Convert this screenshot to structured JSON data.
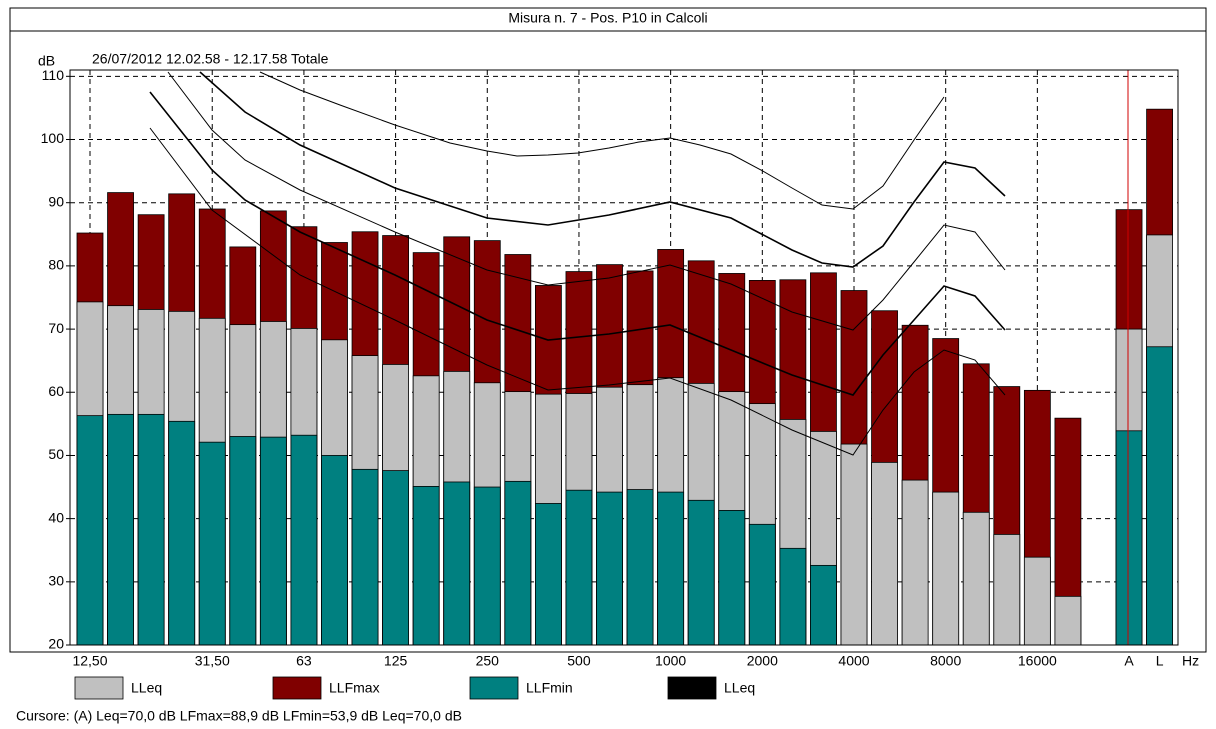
{
  "chart_data": {
    "type": "bar",
    "title": "Misura n. 7 - Pos. P10 in Calcoli",
    "subtitle": "26/07/2012 12.02.58 - 12.17.58  Totale",
    "y_label": "dB",
    "x_label": "Hz",
    "categories": [
      "12,50",
      null,
      null,
      null,
      "31,50",
      null,
      null,
      "63",
      null,
      null,
      "125",
      null,
      null,
      "250",
      null,
      null,
      "500",
      null,
      null,
      "1000",
      null,
      null,
      "2000",
      null,
      null,
      "4000",
      null,
      null,
      "8000",
      null,
      null,
      "16000",
      null,
      "A",
      "L"
    ],
    "series": [
      {
        "name": "LLFmax",
        "color": "#800000",
        "values": [
          85.2,
          91.6,
          88.1,
          91.4,
          89.0,
          83.0,
          88.7,
          86.2,
          83.7,
          85.4,
          84.8,
          82.1,
          84.6,
          84.0,
          81.8,
          76.9,
          79.1,
          80.2,
          79.2,
          82.6,
          80.8,
          78.8,
          77.7,
          77.8,
          78.9,
          76.1,
          72.9,
          70.6,
          68.5,
          64.5,
          60.9,
          60.3,
          55.9,
          88.9,
          104.8
        ]
      },
      {
        "name": "LLeq",
        "color": "#c0c0c0",
        "values": [
          74.3,
          73.7,
          73.1,
          72.8,
          71.7,
          70.7,
          71.2,
          70.1,
          68.3,
          65.8,
          64.4,
          62.6,
          63.3,
          61.5,
          60.1,
          59.7,
          59.8,
          60.8,
          61.2,
          62.3,
          61.4,
          60.1,
          58.2,
          55.7,
          53.8,
          51.8,
          48.9,
          46.1,
          44.2,
          41.0,
          37.5,
          33.9,
          27.7,
          70.0,
          84.9
        ]
      },
      {
        "name": "LLFmin",
        "color": "#008080",
        "values": [
          56.3,
          56.5,
          56.5,
          55.4,
          52.1,
          53.0,
          52.9,
          53.2,
          50.0,
          47.8,
          47.6,
          45.1,
          45.8,
          45.0,
          45.9,
          42.4,
          44.5,
          44.2,
          44.6,
          44.2,
          42.9,
          41.3,
          39.1,
          35.3,
          32.6,
          null,
          null,
          null,
          null,
          null,
          null,
          null,
          null,
          53.9,
          67.2
        ]
      }
    ],
    "legend_order": [
      1,
      0,
      2
    ],
    "extra_legend": {
      "name": "LLeq",
      "color": "#000000"
    },
    "ylim": [
      20,
      111
    ],
    "yticks": [
      20,
      30,
      40,
      50,
      60,
      70,
      80,
      90,
      100,
      110
    ],
    "grid": true,
    "cursor": "Cursore: (A)  Leq=70,0 dB  LFmax=88,9 dB  LFmin=53,9 dB  Leq=70,0 dB"
  }
}
